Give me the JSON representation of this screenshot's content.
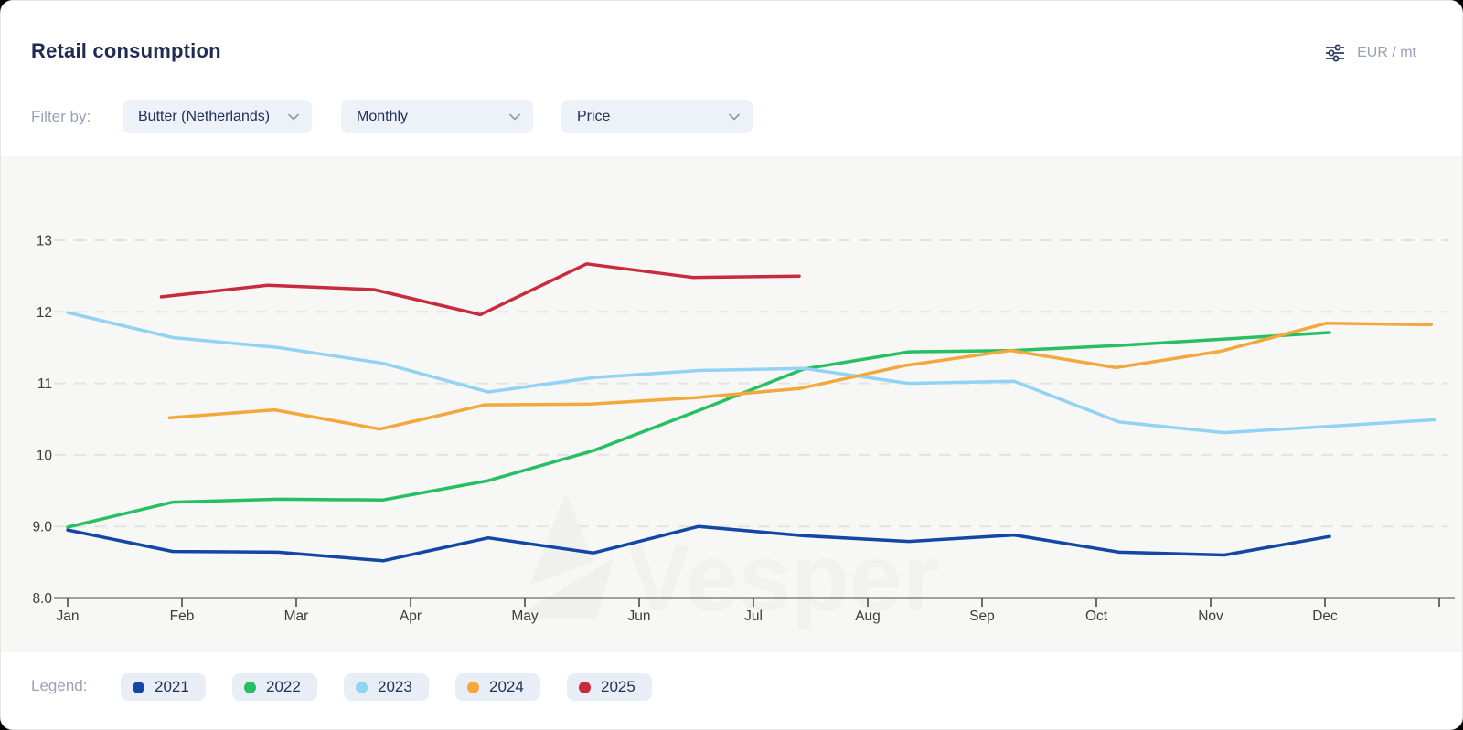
{
  "header": {
    "title": "Retail consumption",
    "unit_label": "EUR / mt"
  },
  "filters": {
    "label": "Filter by:",
    "dropdowns": [
      {
        "value": "Butter (Netherlands)"
      },
      {
        "value": "Monthly"
      },
      {
        "value": "Price"
      }
    ]
  },
  "watermark": {
    "text": "Vesper"
  },
  "legend": {
    "label": "Legend:",
    "items": [
      {
        "label": "2021",
        "color": "#1247a5"
      },
      {
        "label": "2022",
        "color": "#27bf64"
      },
      {
        "label": "2023",
        "color": "#92d2f2"
      },
      {
        "label": "2024",
        "color": "#f2a83d"
      },
      {
        "label": "2025",
        "color": "#c82b3c"
      }
    ]
  },
  "chart_data": {
    "type": "line",
    "title": "Retail consumption",
    "unit": "EUR / mt",
    "grid": "horizontal-dashed",
    "legend_position": "bottom",
    "x_axis": {
      "labels": [
        "Jan",
        "Feb",
        "Mar",
        "Apr",
        "May",
        "Jun",
        "Jul",
        "Aug",
        "Sep",
        "Oct",
        "Nov",
        "Dec"
      ],
      "note": "x values below are fractional month positions, Jan = 0",
      "extra_unlabeled_tick_at": 12
    },
    "y_axis": {
      "axis_value": 8,
      "range": [
        8,
        13.6
      ],
      "ticks": [
        {
          "label": "13",
          "value": 13
        },
        {
          "label": "12",
          "value": 12
        },
        {
          "label": "11",
          "value": 11
        },
        {
          "label": "10",
          "value": 10
        },
        {
          "label": "9.0",
          "value": 9
        },
        {
          "label": "8.0",
          "value": 8
        }
      ]
    },
    "series": [
      {
        "name": "2021",
        "color": "#1247a5",
        "x": [
          0,
          0.92,
          1.84,
          2.76,
          3.68,
          4.6,
          5.52,
          6.44,
          7.36,
          8.28,
          9.2,
          10.12,
          11.04
        ],
        "values": [
          8.95,
          8.65,
          8.64,
          8.52,
          8.84,
          8.63,
          9.0,
          8.87,
          8.79,
          8.88,
          8.64,
          8.6,
          8.86
        ]
      },
      {
        "name": "2022",
        "color": "#27bf64",
        "x": [
          0,
          0.92,
          1.84,
          2.76,
          3.68,
          4.6,
          5.52,
          6.44,
          7.36,
          8.28,
          9.2,
          10.12,
          11.04
        ],
        "values": [
          8.99,
          9.34,
          9.38,
          9.37,
          9.64,
          10.06,
          10.62,
          11.2,
          11.44,
          11.46,
          11.53,
          11.62,
          11.71
        ]
      },
      {
        "name": "2023",
        "color": "#92d2f2",
        "x": [
          0,
          0.92,
          1.84,
          2.76,
          3.68,
          4.6,
          5.52,
          6.44,
          7.36,
          8.28,
          9.2,
          10.12,
          11.04,
          11.96
        ],
        "values": [
          11.99,
          11.64,
          11.5,
          11.28,
          10.88,
          11.08,
          11.18,
          11.21,
          11.0,
          11.03,
          10.46,
          10.31,
          10.4,
          10.49
        ]
      },
      {
        "name": "2024",
        "color": "#f2a83d",
        "x": [
          0.89,
          1.81,
          2.73,
          3.65,
          4.57,
          5.49,
          6.41,
          7.33,
          8.25,
          9.17,
          10.09,
          11.01,
          11.93
        ],
        "values": [
          10.52,
          10.63,
          10.36,
          10.7,
          10.71,
          10.8,
          10.93,
          11.25,
          11.46,
          11.22,
          11.45,
          11.84,
          11.82
        ]
      },
      {
        "name": "2025",
        "color": "#c82b3c",
        "x": [
          0.82,
          1.75,
          2.68,
          3.61,
          4.54,
          5.47,
          6.4
        ],
        "values": [
          12.21,
          12.37,
          12.31,
          11.96,
          12.67,
          12.48,
          12.5
        ]
      }
    ]
  }
}
